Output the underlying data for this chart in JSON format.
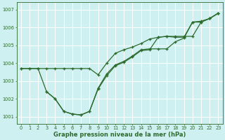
{
  "title": "Graphe pression niveau de la mer (hPa)",
  "bg_color": "#cff0f0",
  "grid_color": "#ffffff",
  "line_color": "#2d6a2d",
  "xlim": [
    -0.5,
    23.5
  ],
  "ylim": [
    1000.6,
    1007.4
  ],
  "yticks": [
    1001,
    1002,
    1003,
    1004,
    1005,
    1006,
    1007
  ],
  "xticks": [
    0,
    1,
    2,
    3,
    4,
    5,
    6,
    7,
    8,
    9,
    10,
    11,
    12,
    13,
    14,
    15,
    16,
    17,
    18,
    19,
    20,
    21,
    22,
    23
  ],
  "series": [
    {
      "x": [
        0,
        1,
        2,
        3,
        4,
        5,
        6,
        7,
        8,
        9,
        10,
        11,
        12,
        13,
        14,
        15,
        16,
        17,
        18,
        19,
        20,
        21,
        22,
        23
      ],
      "y": [
        1003.7,
        1003.7,
        1003.7,
        1003.7,
        1003.7,
        1003.7,
        1003.7,
        1003.7,
        1003.7,
        1003.35,
        1004.0,
        1004.55,
        1004.75,
        1004.9,
        1005.1,
        1005.35,
        1005.45,
        1005.5,
        1005.5,
        1005.5,
        1005.5,
        1006.3,
        1006.5,
        1006.8
      ]
    },
    {
      "x": [
        0,
        1,
        2,
        3,
        4,
        5,
        6,
        7,
        8,
        9,
        10,
        11,
        12,
        13,
        14,
        15,
        16,
        17,
        18,
        19,
        20,
        21,
        22,
        23
      ],
      "y": [
        1003.7,
        1003.7,
        1003.7,
        1002.4,
        1002.0,
        1001.3,
        1001.15,
        1001.1,
        1001.3,
        1002.6,
        1003.4,
        1003.9,
        1004.1,
        1004.4,
        1004.75,
        1004.8,
        1004.8,
        1004.8,
        1005.2,
        1005.4,
        1006.3,
        1006.3,
        1006.5,
        1006.8
      ]
    },
    {
      "x": [
        3,
        4,
        5,
        6,
        7,
        8,
        9,
        10,
        11,
        12,
        13,
        14,
        15,
        16,
        17,
        18,
        19,
        20,
        21,
        22,
        23
      ],
      "y": [
        1002.4,
        1002.0,
        1001.3,
        1001.15,
        1001.1,
        1001.3,
        1002.55,
        1003.3,
        1003.85,
        1004.05,
        1004.35,
        1004.7,
        1004.75,
        1005.45,
        1005.5,
        1005.45,
        1005.45,
        1006.3,
        1006.35,
        1006.5,
        1006.8
      ]
    }
  ],
  "title_fontsize": 6,
  "tick_fontsize": 4.8,
  "linewidth": 0.9,
  "markersize": 3.0
}
